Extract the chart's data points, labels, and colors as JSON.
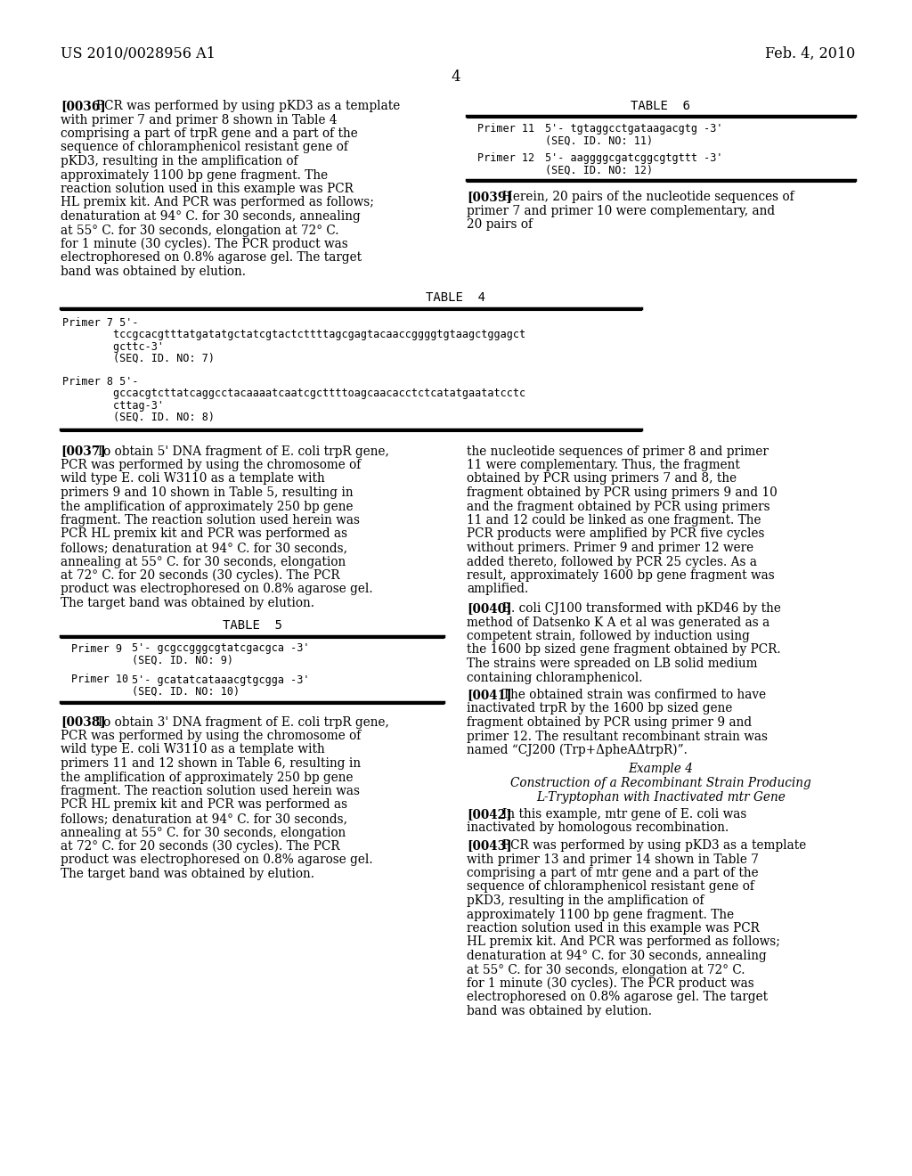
{
  "bg_color": "#ffffff",
  "header_left": "US 2010/0028956 A1",
  "header_right": "Feb. 4, 2010",
  "page_number": "4",
  "para0036_label": "[0036]",
  "para0036_text": "PCR was performed by using pKD3 as a template with primer 7 and primer 8 shown in Table 4 comprising a part of trpR gene and a part of the sequence of chloramphenicol resistant gene of pKD3, resulting in the amplification of approximately 1100 bp gene fragment. The reaction solution used in this example was PCR HL premix kit. And PCR was performed as follows; denaturation at 94° C. for 30 seconds, annealing at 55° C. for 30 seconds, elongation at 72° C. for 1 minute (30 cycles). The PCR product was electrophoresed on 0.8% agarose gel. The target band was obtained by elution.",
  "table6_title": "TABLE  6",
  "table6_primer11_label": "Primer 11",
  "table6_primer11_seq": "5'- tgtaggcctgataagacgtg -3'",
  "table6_primer11_id": "(SEQ. ID. NO: 11)",
  "table6_primer12_label": "Primer 12",
  "table6_primer12_seq": "5'- aaggggcgatcggcgtgttt -3'",
  "table6_primer12_id": "(SEQ. ID. NO: 12)",
  "para0039_label": "[0039]",
  "para0039_text": "Herein, 20 pairs of the nucleotide sequences of primer 7 and primer 10 were complementary, and 20 pairs of",
  "table4_title": "TABLE  4",
  "table4_primer7_label": "Primer 7 5'-",
  "table4_primer7_seq1": "        tccgcacgtttatgatatgctatcgtactcttttagcgagtacaaccggggtgtaagctggagct",
  "table4_primer7_seq2": "        gcttc-3'",
  "table4_primer7_id": "        (SEQ. ID. NO: 7)",
  "table4_primer8_label": "Primer 8 5'-",
  "table4_primer8_seq1": "        gccacgtcttatcaggcctacaaaatcaatcgcttttoagcaacacctctcatatgaatatcctc",
  "table4_primer8_seq2": "        cttag-3'",
  "table4_primer8_id": "        (SEQ. ID. NO: 8)",
  "para0037_label": "[0037]",
  "para0037_text_left": "To obtain 5' DNA fragment of E. coli trpR gene, PCR was performed by using the chromosome of wild type E. coli W3110 as a template with primers 9 and 10 shown in Table 5, resulting in the amplification of approximately 250 bp gene fragment. The reaction solution used herein was PCR HL premix kit and PCR was performed as follows; denaturation at 94° C. for 30 seconds, annealing at 55° C. for 30 seconds, elongation at 72° C. for 20 seconds (30 cycles). The PCR product was electrophoresed on 0.8% agarose gel. The target band was obtained by elution.",
  "para0037_text_right": "the nucleotide sequences of primer 8 and primer 11 were complementary. Thus, the fragment obtained by PCR using primers 7 and 8, the fragment obtained by PCR using primers 9 and 10 and the fragment obtained by PCR using primers 11 and 12 could be linked as one fragment. The PCR products were amplified by PCR five cycles without primers. Primer 9 and primer 12 were added thereto, followed by PCR 25 cycles. As a result, approximately 1600 bp gene fragment was amplified.",
  "para0040_label": "[0040]",
  "para0040_text": "E. coli CJ100 transformed with pKD46 by the method of Datsenko K A et al was generated as a competent strain, followed by induction using the 1600 bp sized gene fragment obtained by PCR. The strains were spreaded on LB solid medium containing chloramphenicol.",
  "para0041_label": "[0041]",
  "para0041_text": "The obtained strain was confirmed to have inactivated trpR by the 1600 bp sized gene fragment obtained by PCR using primer 9 and primer 12. The resultant recombinant strain was named “CJ200 (Trp+ΔpheAΔtrpR)”.",
  "example4_title": "Example 4",
  "example4_subtitle1": "Construction of a Recombinant Strain Producing",
  "example4_subtitle2": "L-Tryptophan with Inactivated mtr Gene",
  "para0042_label": "[0042]",
  "para0042_text": "In this example, mtr gene of E. coli was inactivated by homologous recombination.",
  "para0043_label": "[0043]",
  "para0043_text": "PCR was performed by using pKD3 as a template with primer 13 and primer 14 shown in Table 7 comprising a part of mtr gene and a part of the sequence of chloramphenicol resistant gene of pKD3, resulting in the amplification of approximately 1100 bp gene fragment. The reaction solution used in this example was PCR HL premix kit. And PCR was performed as follows; denaturation at 94° C. for 30 seconds, annealing at 55° C. for 30 seconds, elongation at 72° C. for 1 minute (30 cycles). The PCR product was electrophoresed on 0.8% agarose gel. The target band was obtained by elution.",
  "para0038_label": "[0038]",
  "para0038_text": "To obtain 3' DNA fragment of E. coli trpR gene, PCR was performed by using the chromosome of wild type E. coli W3110 as a template with primers 11 and 12 shown in Table 6, resulting in the amplification of approximately 250 bp gene fragment. The reaction solution used herein was PCR HL premix kit and PCR was performed as follows; denaturation at 94° C. for 30 seconds, annealing at 55° C. for 30 seconds, elongation at 72° C. for 20 seconds (30 cycles). The PCR product was electrophoresed on 0.8% agarose gel. The target band was obtained by elution.",
  "table5_title": "TABLE  5",
  "table5_primer9_label": "Primer 9",
  "table5_primer9_seq": "5'- gcgccgggcgtatcgacgca -3'",
  "table5_primer9_id": "(SEQ. ID. NO: 9)",
  "table5_primer10_label": "Primer 10",
  "table5_primer10_seq": "5'- gcatatcataaacgtgcgga -3'",
  "table5_primer10_id": "(SEQ. ID. NO: 10)"
}
